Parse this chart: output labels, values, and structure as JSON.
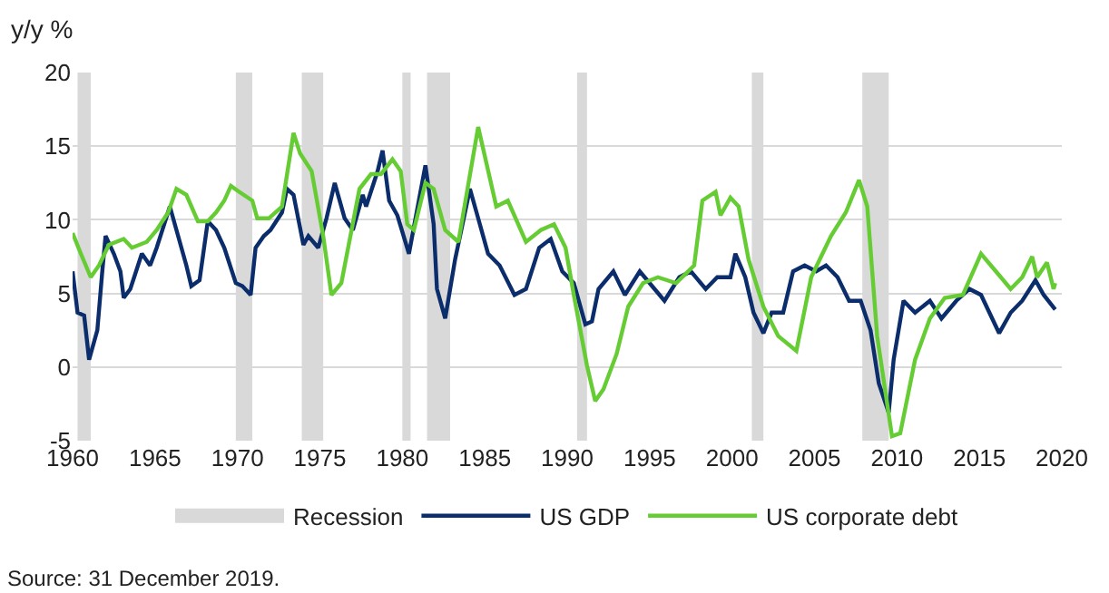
{
  "chart_data": {
    "type": "line",
    "ylabel": "y/y %",
    "xlim": [
      1960,
      2020
    ],
    "xticks": [
      1960,
      1965,
      1970,
      1975,
      1980,
      1985,
      1990,
      1995,
      2000,
      2005,
      2010,
      2015,
      2020
    ],
    "ylim": [
      -5,
      20
    ],
    "yticks": [
      -5,
      0,
      5,
      10,
      15,
      20
    ],
    "grid": "y",
    "legend": "bottom",
    "marker": "none",
    "line_style": "solid",
    "bands": [
      {
        "axis": "x",
        "from": 1960.3,
        "to": 1961.1,
        "label": "Recession",
        "color": "#d9d9d9"
      },
      {
        "axis": "x",
        "from": 1969.9,
        "to": 1970.9,
        "color": "#d9d9d9"
      },
      {
        "axis": "x",
        "from": 1973.9,
        "to": 1975.2,
        "color": "#d9d9d9"
      },
      {
        "axis": "x",
        "from": 1980.0,
        "to": 1980.5,
        "color": "#d9d9d9"
      },
      {
        "axis": "x",
        "from": 1981.5,
        "to": 1982.9,
        "color": "#d9d9d9"
      },
      {
        "axis": "x",
        "from": 1990.6,
        "to": 1991.2,
        "color": "#d9d9d9"
      },
      {
        "axis": "x",
        "from": 2001.2,
        "to": 2001.9,
        "color": "#d9d9d9"
      },
      {
        "axis": "x",
        "from": 2007.9,
        "to": 2009.5,
        "color": "#d9d9d9"
      }
    ],
    "series": [
      {
        "name": "US GDP",
        "color": "#0b2d6b",
        "x": [
          1960.0,
          1960.3,
          1960.7,
          1961.0,
          1961.5,
          1961.8,
          1962.0,
          1962.5,
          1962.9,
          1963.1,
          1963.5,
          1964.2,
          1964.7,
          1965.1,
          1965.9,
          1966.3,
          1966.9,
          1967.2,
          1967.7,
          1968.2,
          1968.7,
          1969.2,
          1969.9,
          1970.3,
          1970.8,
          1971.1,
          1971.6,
          1972.0,
          1972.7,
          1973.0,
          1973.4,
          1974.0,
          1974.3,
          1974.9,
          1975.4,
          1975.9,
          1976.5,
          1977.0,
          1977.6,
          1977.8,
          1978.5,
          1978.8,
          1979.2,
          1979.7,
          1980.4,
          1981.4,
          1981.9,
          1982.1,
          1982.6,
          1983.2,
          1984.1,
          1984.6,
          1985.2,
          1985.9,
          1986.8,
          1987.5,
          1988.3,
          1989.0,
          1989.7,
          1990.4,
          1991.1,
          1991.5,
          1991.9,
          1992.8,
          1993.5,
          1994.4,
          1995.3,
          1995.9,
          1996.8,
          1997.5,
          1998.4,
          1999.1,
          1999.9,
          2000.2,
          2000.8,
          2001.3,
          2001.9,
          2002.4,
          2003.1,
          2003.7,
          2004.4,
          2005.1,
          2005.7,
          2006.4,
          2007.1,
          2007.8,
          2008.4,
          2008.9,
          2009.5,
          2009.8,
          2010.4,
          2011.1,
          2012.0,
          2012.7,
          2013.6,
          2014.4,
          2015.1,
          2016.2,
          2016.9,
          2017.6,
          2018.4,
          2018.9,
          2019.6
        ],
        "values": [
          6.5,
          3.7,
          3.5,
          0.5,
          2.5,
          6.5,
          8.9,
          7.7,
          6.5,
          4.7,
          5.3,
          7.7,
          6.9,
          8.1,
          10.9,
          9.3,
          6.9,
          5.5,
          5.9,
          9.9,
          9.3,
          8.1,
          5.7,
          5.5,
          4.9,
          8.1,
          8.9,
          9.3,
          10.5,
          12.1,
          11.7,
          8.3,
          8.9,
          8.1,
          10.1,
          12.5,
          10.1,
          9.3,
          11.7,
          10.9,
          13.3,
          14.7,
          11.3,
          10.3,
          7.7,
          13.7,
          9.7,
          5.3,
          3.3,
          7.3,
          12.1,
          10.1,
          7.7,
          6.9,
          4.9,
          5.3,
          8.1,
          8.7,
          6.5,
          5.7,
          2.9,
          3.1,
          5.3,
          6.5,
          4.9,
          6.5,
          5.3,
          4.5,
          6.1,
          6.5,
          5.3,
          6.1,
          6.1,
          7.7,
          6.1,
          3.7,
          2.3,
          3.7,
          3.7,
          6.5,
          6.9,
          6.5,
          6.9,
          6.1,
          4.5,
          4.5,
          2.5,
          -1.1,
          -3.1,
          0.5,
          4.5,
          3.7,
          4.5,
          3.3,
          4.5,
          5.3,
          4.9,
          2.3,
          3.7,
          4.5,
          5.9,
          4.9,
          3.9
        ]
      },
      {
        "name": "US corporate debt",
        "color": "#66cc33",
        "x": [
          1960.0,
          1960.5,
          1961.1,
          1961.6,
          1962.2,
          1963.1,
          1963.6,
          1964.5,
          1965.1,
          1965.8,
          1966.3,
          1966.9,
          1967.6,
          1968.2,
          1968.7,
          1969.2,
          1969.6,
          1970.1,
          1970.9,
          1971.2,
          1971.9,
          1972.7,
          1973.4,
          1973.8,
          1974.5,
          1975.2,
          1975.7,
          1976.3,
          1977.4,
          1978.1,
          1978.7,
          1979.4,
          1979.9,
          1980.3,
          1980.7,
          1981.4,
          1981.9,
          1982.6,
          1983.4,
          1984.6,
          1985.7,
          1986.4,
          1987.5,
          1988.4,
          1989.2,
          1989.9,
          1990.4,
          1991.2,
          1991.7,
          1992.2,
          1993.0,
          1993.7,
          1994.6,
          1995.5,
          1996.6,
          1997.7,
          1998.2,
          1999.0,
          1999.3,
          1999.9,
          2000.4,
          2001.0,
          2001.9,
          2002.8,
          2003.9,
          2004.8,
          2006.0,
          2006.9,
          2007.7,
          2008.2,
          2008.8,
          2009.7,
          2010.2,
          2011.1,
          2012.0,
          2012.9,
          2014.0,
          2015.1,
          2016.0,
          2016.9,
          2017.6,
          2018.2,
          2018.5,
          2019.1,
          2019.5,
          2019.6
        ],
        "values": [
          9.1,
          7.7,
          6.1,
          6.9,
          8.3,
          8.7,
          8.1,
          8.5,
          9.3,
          10.5,
          12.1,
          11.7,
          9.9,
          9.9,
          10.5,
          11.3,
          12.3,
          11.9,
          11.3,
          10.1,
          10.1,
          10.9,
          15.9,
          14.5,
          13.3,
          8.9,
          4.9,
          5.7,
          12.1,
          13.1,
          13.1,
          14.1,
          13.3,
          9.7,
          9.3,
          12.5,
          12.1,
          9.3,
          8.5,
          16.3,
          10.9,
          11.3,
          8.5,
          9.3,
          9.7,
          8.1,
          4.9,
          0.1,
          -2.3,
          -1.5,
          0.9,
          4.1,
          5.7,
          6.1,
          5.7,
          6.9,
          11.3,
          11.9,
          10.3,
          11.5,
          10.9,
          7.3,
          4.1,
          2.1,
          1.1,
          6.1,
          8.9,
          10.5,
          12.7,
          10.9,
          2.1,
          -4.7,
          -4.5,
          0.5,
          3.3,
          4.7,
          4.9,
          7.7,
          6.5,
          5.3,
          6.1,
          7.5,
          6.1,
          7.1,
          5.3,
          5.7
        ]
      }
    ],
    "annotations": [
      "Source: 31 December 2019."
    ]
  }
}
